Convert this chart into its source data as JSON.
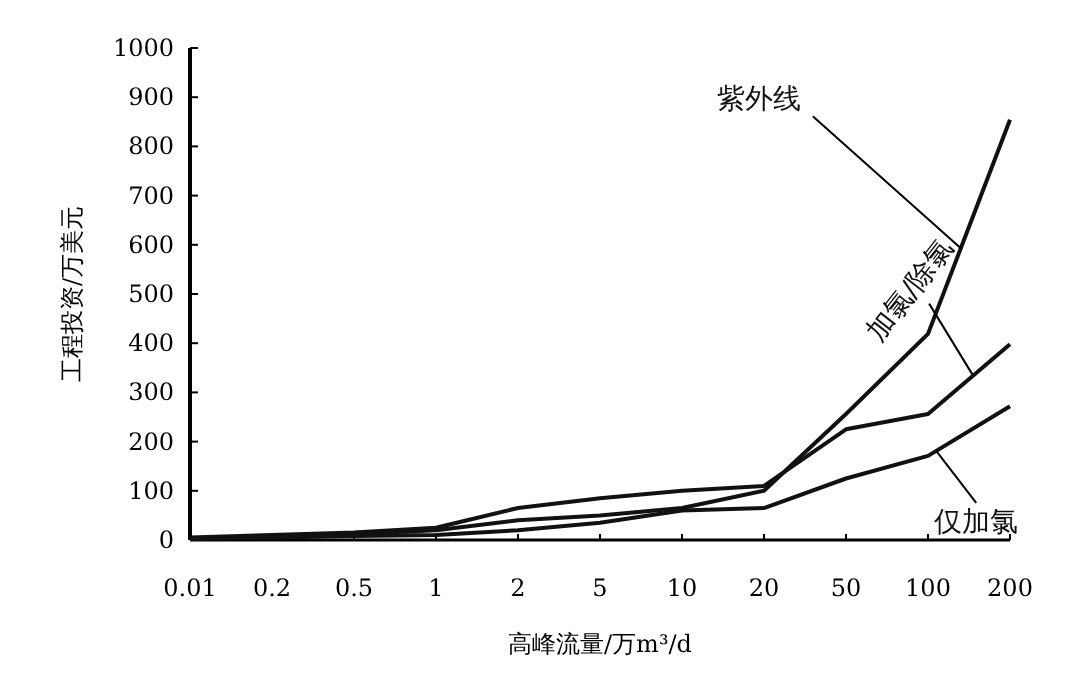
{
  "chart_data": {
    "type": "line",
    "xlabel": "高峰流量/万m³/d",
    "ylabel": "工程投资/万美元",
    "categories": [
      "0.01",
      "0.2",
      "0.5",
      "1",
      "2",
      "5",
      "10",
      "20",
      "50",
      "100",
      "200"
    ],
    "ylim": [
      0,
      1000
    ],
    "yticks": [
      0,
      100,
      200,
      300,
      400,
      500,
      600,
      700,
      800,
      900,
      1000
    ],
    "line_style": "solid",
    "series": [
      {
        "name": "紫外线",
        "color": "#111111",
        "values": [
          3,
          8,
          12,
          20,
          40,
          50,
          65,
          100,
          256,
          419,
          854
        ]
      },
      {
        "name": "加氯/除氯",
        "color": "#111111",
        "values": [
          5,
          10,
          15,
          25,
          65,
          85,
          100,
          110,
          225,
          256,
          398
        ]
      },
      {
        "name": "仅加氯",
        "color": "#111111",
        "values": [
          2,
          5,
          8,
          10,
          20,
          35,
          60,
          65,
          125,
          171,
          272
        ]
      }
    ]
  }
}
